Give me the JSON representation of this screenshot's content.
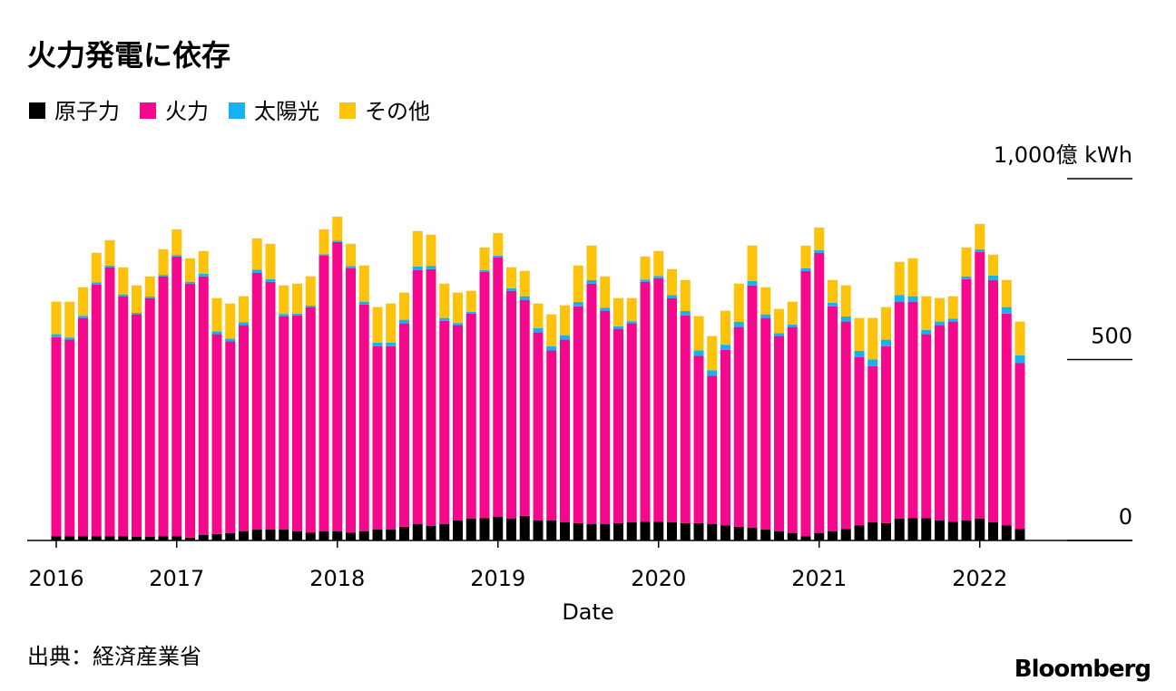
{
  "chart_data": {
    "type": "stacked_bar",
    "title": "火力発電に依存",
    "x_label": "Date",
    "source": "出典：経済産業省",
    "brand": "Bloomberg",
    "categories": [
      "2016",
      null,
      null,
      null,
      null,
      null,
      null,
      null,
      null,
      "2017",
      null,
      null,
      null,
      null,
      null,
      null,
      null,
      null,
      null,
      null,
      null,
      "2018",
      null,
      null,
      null,
      null,
      null,
      null,
      null,
      null,
      null,
      null,
      null,
      "2019",
      null,
      null,
      null,
      null,
      null,
      null,
      null,
      null,
      null,
      null,
      null,
      "2020",
      null,
      null,
      null,
      null,
      null,
      null,
      null,
      null,
      null,
      null,
      null,
      "2021",
      null,
      null,
      null,
      null,
      null,
      null,
      null,
      null,
      null,
      null,
      null,
      "2022",
      null,
      null,
      null
    ],
    "series": [
      {
        "name": "原子力",
        "color": "#000000",
        "values": [
          12,
          12,
          12,
          12,
          12,
          12,
          10,
          10,
          12,
          12,
          8,
          15,
          18,
          20,
          25,
          30,
          30,
          30,
          25,
          22,
          25,
          25,
          22,
          25,
          30,
          30,
          38,
          45,
          40,
          45,
          55,
          60,
          62,
          65,
          60,
          68,
          55,
          55,
          50,
          48,
          45,
          45,
          48,
          50,
          52,
          52,
          50,
          48,
          48,
          45,
          42,
          38,
          35,
          30,
          25,
          20,
          12,
          20,
          25,
          32,
          42,
          50,
          48,
          60,
          62,
          62,
          55,
          52,
          55,
          60,
          50,
          42,
          32
        ]
      },
      {
        "name": "火力",
        "color": "#f5088c",
        "values": [
          550,
          543,
          603,
          695,
          743,
          663,
          615,
          660,
          718,
          773,
          702,
          715,
          552,
          530,
          570,
          710,
          685,
          590,
          597,
          623,
          762,
          800,
          730,
          627,
          507,
          507,
          562,
          702,
          710,
          562,
          540,
          567,
          680,
          717,
          630,
          597,
          520,
          470,
          505,
          599,
          665,
          590,
          537,
          550,
          663,
          673,
          620,
          574,
          462,
          410,
          485,
          552,
          670,
          585,
          540,
          570,
          733,
          775,
          622,
          573,
          465,
          432,
          489,
          600,
          598,
          508,
          540,
          553,
          667,
          737,
          670,
          585,
          458
        ]
      },
      {
        "name": "太陽光",
        "color": "#14b2f0",
        "values": [
          8,
          6,
          6,
          6,
          5,
          5,
          4,
          4,
          4,
          4,
          5,
          7,
          8,
          8,
          8,
          8,
          7,
          6,
          5,
          4,
          4,
          4,
          6,
          8,
          10,
          10,
          10,
          10,
          9,
          8,
          6,
          5,
          5,
          5,
          7,
          10,
          12,
          12,
          12,
          12,
          10,
          8,
          7,
          6,
          6,
          6,
          8,
          12,
          15,
          15,
          14,
          14,
          12,
          10,
          8,
          7,
          7,
          7,
          10,
          14,
          17,
          18,
          18,
          18,
          15,
          12,
          10,
          8,
          8,
          8,
          12,
          18,
          22
        ]
      },
      {
        "name": "その他",
        "color": "#fdc30a",
        "values": [
          90,
          99,
          79,
          82,
          70,
          75,
          76,
          56,
          71,
          71,
          65,
          63,
          92,
          97,
          72,
          87,
          98,
          79,
          83,
          81,
          69,
          66,
          62,
          100,
          98,
          108,
          75,
          98,
          86,
          95,
          84,
          58,
          63,
          63,
          58,
          70,
          68,
          88,
          83,
          101,
          95,
          87,
          78,
          64,
          64,
          69,
          72,
          86,
          95,
          95,
          94,
          106,
          98,
          75,
          67,
          63,
          63,
          63,
          63,
          86,
          91,
          115,
          90,
          92,
          105,
          93,
          65,
          62,
          80,
          70,
          58,
          75,
          93
        ]
      }
    ],
    "ylim": [
      0,
      1000
    ],
    "yticks": [
      0,
      500,
      {
        "value": 1000,
        "label": "1,000億 kWh"
      }
    ]
  }
}
